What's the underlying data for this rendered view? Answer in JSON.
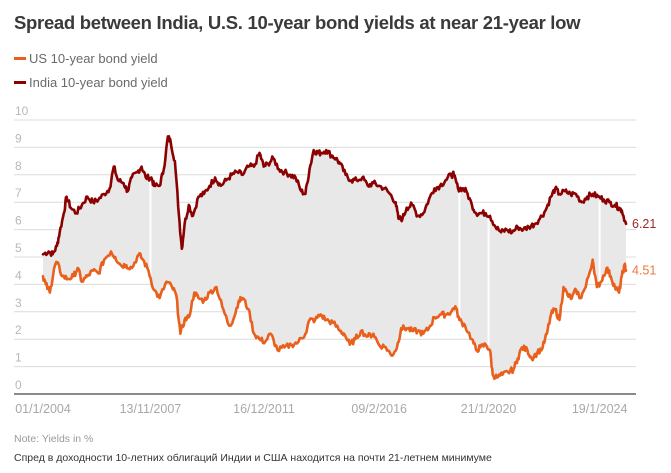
{
  "title": "Spread between India, U.S. 10-year bond yields at near 21-year low",
  "legend": [
    {
      "label": "US 10-year bond yield",
      "color": "#e8601c"
    },
    {
      "label": "India 10-year bond yield",
      "color": "#8b0000"
    }
  ],
  "note": "Note: Yields in %",
  "caption": "Спред в доходности 10-летних облигаций Индии и США находится на почти 21-летнем минимуме",
  "chart_data": {
    "type": "line",
    "title": "Spread between India, U.S. 10-year bond yields at near 21-year low",
    "xlabel": "",
    "ylabel": "Yields in %",
    "ylim": [
      0,
      10
    ],
    "xlim": [
      2004.0,
      2025.0
    ],
    "yticks": [
      0,
      1,
      2,
      3,
      4,
      5,
      6,
      7,
      8,
      9,
      10
    ],
    "xticks": [
      {
        "label": "01/1/2004",
        "value": 2004.0
      },
      {
        "label": "13/11/2007",
        "value": 2007.87
      },
      {
        "label": "16/12/2011",
        "value": 2011.96
      },
      {
        "label": "09/2/2016",
        "value": 2016.11
      },
      {
        "label": "21/1/2020",
        "value": 2020.05
      },
      {
        "label": "19/1/2024",
        "value": 2024.05
      }
    ],
    "grid": true,
    "legend_position": "top-left",
    "fill_between": {
      "color": "#e8e8e8",
      "description": "shaded spread area between the two series"
    },
    "series": [
      {
        "name": "India 10-year bond yield",
        "color": "#8b0000",
        "end_label": "6.21",
        "points": [
          [
            2004.0,
            5.1
          ],
          [
            2004.2,
            5.2
          ],
          [
            2004.35,
            5.1
          ],
          [
            2004.5,
            5.4
          ],
          [
            2004.6,
            5.9
          ],
          [
            2004.75,
            6.6
          ],
          [
            2004.85,
            7.2
          ],
          [
            2005.0,
            6.8
          ],
          [
            2005.2,
            6.6
          ],
          [
            2005.4,
            6.9
          ],
          [
            2005.6,
            7.2
          ],
          [
            2005.8,
            7.0
          ],
          [
            2006.0,
            7.1
          ],
          [
            2006.2,
            7.3
          ],
          [
            2006.4,
            7.5
          ],
          [
            2006.55,
            8.3
          ],
          [
            2006.7,
            7.8
          ],
          [
            2006.9,
            7.7
          ],
          [
            2007.05,
            7.4
          ],
          [
            2007.2,
            7.9
          ],
          [
            2007.4,
            8.1
          ],
          [
            2007.55,
            8.3
          ],
          [
            2007.7,
            7.9
          ],
          [
            2007.9,
            7.9
          ],
          [
            2008.0,
            7.6
          ],
          [
            2008.2,
            7.6
          ],
          [
            2008.35,
            8.2
          ],
          [
            2008.5,
            9.4
          ],
          [
            2008.6,
            9.2
          ],
          [
            2008.75,
            8.5
          ],
          [
            2008.9,
            6.5
          ],
          [
            2009.0,
            5.3
          ],
          [
            2009.1,
            6.2
          ],
          [
            2009.25,
            6.9
          ],
          [
            2009.4,
            6.5
          ],
          [
            2009.6,
            7.2
          ],
          [
            2009.8,
            7.3
          ],
          [
            2010.0,
            7.6
          ],
          [
            2010.2,
            7.9
          ],
          [
            2010.4,
            7.6
          ],
          [
            2010.6,
            7.8
          ],
          [
            2010.8,
            8.0
          ],
          [
            2011.0,
            8.1
          ],
          [
            2011.2,
            8.0
          ],
          [
            2011.4,
            8.3
          ],
          [
            2011.6,
            8.3
          ],
          [
            2011.8,
            8.8
          ],
          [
            2011.95,
            8.3
          ],
          [
            2012.1,
            8.4
          ],
          [
            2012.3,
            8.6
          ],
          [
            2012.5,
            8.2
          ],
          [
            2012.7,
            8.1
          ],
          [
            2012.9,
            8.0
          ],
          [
            2013.1,
            7.9
          ],
          [
            2013.3,
            7.4
          ],
          [
            2013.45,
            7.3
          ],
          [
            2013.6,
            8.2
          ],
          [
            2013.75,
            8.9
          ],
          [
            2013.9,
            8.8
          ],
          [
            2014.0,
            8.8
          ],
          [
            2014.2,
            8.9
          ],
          [
            2014.4,
            8.7
          ],
          [
            2014.55,
            8.6
          ],
          [
            2014.7,
            8.4
          ],
          [
            2014.9,
            8.0
          ],
          [
            2015.1,
            7.8
          ],
          [
            2015.3,
            7.8
          ],
          [
            2015.5,
            7.9
          ],
          [
            2015.7,
            7.6
          ],
          [
            2015.9,
            7.7
          ],
          [
            2016.1,
            7.6
          ],
          [
            2016.3,
            7.5
          ],
          [
            2016.5,
            7.3
          ],
          [
            2016.7,
            7.0
          ],
          [
            2016.8,
            6.4
          ],
          [
            2016.95,
            6.4
          ],
          [
            2017.1,
            6.8
          ],
          [
            2017.3,
            6.9
          ],
          [
            2017.5,
            6.5
          ],
          [
            2017.7,
            6.6
          ],
          [
            2017.9,
            7.1
          ],
          [
            2018.1,
            7.5
          ],
          [
            2018.3,
            7.6
          ],
          [
            2018.5,
            7.8
          ],
          [
            2018.7,
            8.0
          ],
          [
            2018.8,
            8.0
          ],
          [
            2018.95,
            7.5
          ],
          [
            2019.1,
            7.5
          ],
          [
            2019.25,
            7.4
          ],
          [
            2019.45,
            6.9
          ],
          [
            2019.6,
            6.6
          ],
          [
            2019.8,
            6.6
          ],
          [
            2019.95,
            6.6
          ],
          [
            2020.1,
            6.5
          ],
          [
            2020.3,
            6.1
          ],
          [
            2020.5,
            5.9
          ],
          [
            2020.7,
            6.0
          ],
          [
            2020.9,
            5.9
          ],
          [
            2021.1,
            6.1
          ],
          [
            2021.3,
            6.0
          ],
          [
            2021.5,
            6.1
          ],
          [
            2021.7,
            6.2
          ],
          [
            2021.9,
            6.4
          ],
          [
            2022.1,
            6.7
          ],
          [
            2022.3,
            7.2
          ],
          [
            2022.45,
            7.5
          ],
          [
            2022.6,
            7.3
          ],
          [
            2022.8,
            7.4
          ],
          [
            2023.0,
            7.3
          ],
          [
            2023.2,
            7.3
          ],
          [
            2023.4,
            7.0
          ],
          [
            2023.6,
            7.2
          ],
          [
            2023.8,
            7.3
          ],
          [
            2024.0,
            7.2
          ],
          [
            2024.2,
            7.1
          ],
          [
            2024.4,
            7.0
          ],
          [
            2024.6,
            6.9
          ],
          [
            2024.75,
            6.8
          ],
          [
            2024.85,
            6.7
          ],
          [
            2025.0,
            6.21
          ]
        ]
      },
      {
        "name": "US 10-year bond yield",
        "color": "#e8601c",
        "end_label": "4.51",
        "points": [
          [
            2004.0,
            4.3
          ],
          [
            2004.1,
            4.0
          ],
          [
            2004.25,
            3.7
          ],
          [
            2004.4,
            4.6
          ],
          [
            2004.5,
            4.8
          ],
          [
            2004.7,
            4.3
          ],
          [
            2004.9,
            4.2
          ],
          [
            2005.1,
            4.3
          ],
          [
            2005.25,
            4.6
          ],
          [
            2005.4,
            4.1
          ],
          [
            2005.6,
            4.3
          ],
          [
            2005.8,
            4.5
          ],
          [
            2006.0,
            4.4
          ],
          [
            2006.2,
            4.9
          ],
          [
            2006.45,
            5.2
          ],
          [
            2006.6,
            5.0
          ],
          [
            2006.8,
            4.7
          ],
          [
            2007.0,
            4.7
          ],
          [
            2007.2,
            4.6
          ],
          [
            2007.45,
            5.1
          ],
          [
            2007.6,
            4.9
          ],
          [
            2007.8,
            4.5
          ],
          [
            2008.0,
            3.8
          ],
          [
            2008.2,
            3.5
          ],
          [
            2008.45,
            4.1
          ],
          [
            2008.65,
            3.9
          ],
          [
            2008.8,
            3.6
          ],
          [
            2008.95,
            2.2
          ],
          [
            2009.1,
            2.7
          ],
          [
            2009.25,
            2.8
          ],
          [
            2009.45,
            3.7
          ],
          [
            2009.6,
            3.5
          ],
          [
            2009.8,
            3.4
          ],
          [
            2010.0,
            3.7
          ],
          [
            2010.25,
            3.9
          ],
          [
            2010.45,
            3.2
          ],
          [
            2010.7,
            2.5
          ],
          [
            2010.85,
            2.7
          ],
          [
            2011.05,
            3.4
          ],
          [
            2011.2,
            3.5
          ],
          [
            2011.4,
            3.1
          ],
          [
            2011.6,
            2.2
          ],
          [
            2011.8,
            2.0
          ],
          [
            2012.0,
            1.9
          ],
          [
            2012.2,
            2.2
          ],
          [
            2012.45,
            1.6
          ],
          [
            2012.7,
            1.7
          ],
          [
            2012.95,
            1.8
          ],
          [
            2013.2,
            1.9
          ],
          [
            2013.45,
            2.2
          ],
          [
            2013.6,
            2.7
          ],
          [
            2013.8,
            2.7
          ],
          [
            2014.0,
            2.9
          ],
          [
            2014.2,
            2.7
          ],
          [
            2014.45,
            2.6
          ],
          [
            2014.7,
            2.3
          ],
          [
            2014.85,
            2.2
          ],
          [
            2015.05,
            1.8
          ],
          [
            2015.25,
            2.0
          ],
          [
            2015.45,
            2.3
          ],
          [
            2015.7,
            2.1
          ],
          [
            2015.9,
            2.2
          ],
          [
            2016.1,
            1.8
          ],
          [
            2016.35,
            1.7
          ],
          [
            2016.55,
            1.4
          ],
          [
            2016.75,
            1.7
          ],
          [
            2016.9,
            2.4
          ],
          [
            2017.1,
            2.4
          ],
          [
            2017.3,
            2.3
          ],
          [
            2017.5,
            2.3
          ],
          [
            2017.7,
            2.2
          ],
          [
            2017.9,
            2.4
          ],
          [
            2018.1,
            2.8
          ],
          [
            2018.3,
            2.9
          ],
          [
            2018.5,
            2.9
          ],
          [
            2018.7,
            3.0
          ],
          [
            2018.85,
            3.2
          ],
          [
            2019.0,
            2.7
          ],
          [
            2019.2,
            2.5
          ],
          [
            2019.45,
            2.0
          ],
          [
            2019.6,
            1.6
          ],
          [
            2019.75,
            1.7
          ],
          [
            2019.95,
            1.8
          ],
          [
            2020.1,
            1.6
          ],
          [
            2020.2,
            0.7
          ],
          [
            2020.35,
            0.6
          ],
          [
            2020.55,
            0.7
          ],
          [
            2020.75,
            0.8
          ],
          [
            2020.95,
            0.9
          ],
          [
            2021.1,
            1.3
          ],
          [
            2021.25,
            1.7
          ],
          [
            2021.45,
            1.6
          ],
          [
            2021.6,
            1.3
          ],
          [
            2021.8,
            1.5
          ],
          [
            2022.0,
            1.7
          ],
          [
            2022.15,
            2.2
          ],
          [
            2022.3,
            2.9
          ],
          [
            2022.45,
            3.1
          ],
          [
            2022.6,
            2.7
          ],
          [
            2022.75,
            3.9
          ],
          [
            2022.9,
            3.6
          ],
          [
            2023.05,
            3.5
          ],
          [
            2023.2,
            3.8
          ],
          [
            2023.35,
            3.5
          ],
          [
            2023.55,
            3.9
          ],
          [
            2023.8,
            4.9
          ],
          [
            2023.95,
            3.9
          ],
          [
            2024.1,
            4.1
          ],
          [
            2024.3,
            4.6
          ],
          [
            2024.45,
            4.3
          ],
          [
            2024.6,
            3.9
          ],
          [
            2024.75,
            3.7
          ],
          [
            2024.85,
            4.3
          ],
          [
            2024.95,
            4.7
          ],
          [
            2025.0,
            4.51
          ]
        ]
      }
    ]
  }
}
